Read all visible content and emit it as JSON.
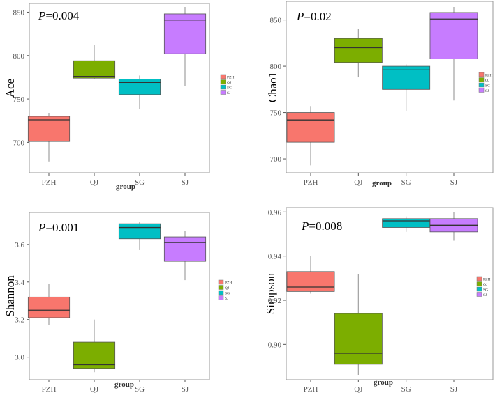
{
  "colors": {
    "PZH": "#f8766d",
    "QJ": "#7cae00",
    "SG": "#00bfc4",
    "SJ": "#c77cff",
    "whisker": "#a0a0a0",
    "median": "#333333",
    "panel_border": "#999999"
  },
  "legend_entries": [
    "PZH",
    "QJ",
    "SG",
    "SJ"
  ],
  "chart_data": [
    {
      "type": "box",
      "ylabel": "Ace",
      "xlabel": "group",
      "annotation": {
        "italic": "P",
        "text": "=0.004"
      },
      "categories": [
        "PZH",
        "QJ",
        "SG",
        "SJ"
      ],
      "yticks": [
        700,
        750,
        800,
        850
      ],
      "ylim": [
        665,
        860
      ],
      "boxes": [
        {
          "min": 678,
          "q1": 701,
          "median": 726,
          "q3": 730,
          "max": 734
        },
        {
          "min": 773,
          "q1": 774,
          "median": 776,
          "q3": 794,
          "max": 812
        },
        {
          "min": 738,
          "q1": 755,
          "median": 769,
          "q3": 773,
          "max": 777
        },
        {
          "min": 765,
          "q1": 802,
          "median": 841,
          "q3": 848,
          "max": 856
        }
      ]
    },
    {
      "type": "box",
      "ylabel": "Chao1",
      "xlabel": "group",
      "annotation": {
        "italic": "P",
        "text": "=0.02"
      },
      "categories": [
        "PZH",
        "QJ",
        "SG",
        "SJ"
      ],
      "yticks": [
        700,
        750,
        800,
        850
      ],
      "ylim": [
        685,
        870
      ],
      "boxes": [
        {
          "min": 693,
          "q1": 718,
          "median": 742,
          "q3": 750,
          "max": 757
        },
        {
          "min": 788,
          "q1": 804,
          "median": 820,
          "q3": 830,
          "max": 840
        },
        {
          "min": 752,
          "q1": 775,
          "median": 796,
          "q3": 800,
          "max": 802
        },
        {
          "min": 763,
          "q1": 808,
          "median": 851,
          "q3": 858,
          "max": 864
        }
      ]
    },
    {
      "type": "box",
      "ylabel": "Shannon",
      "xlabel": "group",
      "annotation": {
        "italic": "P",
        "text": "=0.001"
      },
      "categories": [
        "PZH",
        "QJ",
        "SG",
        "SJ"
      ],
      "yticks": [
        3.0,
        3.2,
        3.4,
        3.6
      ],
      "ylim": [
        2.88,
        3.77
      ],
      "boxes": [
        {
          "min": 3.17,
          "q1": 3.21,
          "median": 3.25,
          "q3": 3.32,
          "max": 3.39
        },
        {
          "min": 2.92,
          "q1": 2.94,
          "median": 2.96,
          "q3": 3.08,
          "max": 3.2
        },
        {
          "min": 3.57,
          "q1": 3.63,
          "median": 3.69,
          "q3": 3.71,
          "max": 3.72
        },
        {
          "min": 3.41,
          "q1": 3.51,
          "median": 3.61,
          "q3": 3.64,
          "max": 3.67
        }
      ]
    },
    {
      "type": "box",
      "ylabel": "Simpson",
      "xlabel": "group",
      "annotation": {
        "italic": "P",
        "text": "=0.008"
      },
      "categories": [
        "PZH",
        "QJ",
        "SG",
        "SJ"
      ],
      "yticks": [
        0.9,
        0.92,
        0.94,
        0.96
      ],
      "ylim": [
        0.884,
        0.962
      ],
      "boxes": [
        {
          "min": 0.923,
          "q1": 0.924,
          "median": 0.926,
          "q3": 0.933,
          "max": 0.94
        },
        {
          "min": 0.886,
          "q1": 0.891,
          "median": 0.896,
          "q3": 0.914,
          "max": 0.932
        },
        {
          "min": 0.951,
          "q1": 0.953,
          "median": 0.956,
          "q3": 0.957,
          "max": 0.958
        },
        {
          "min": 0.947,
          "q1": 0.951,
          "median": 0.954,
          "q3": 0.957,
          "max": 0.96
        }
      ]
    }
  ]
}
